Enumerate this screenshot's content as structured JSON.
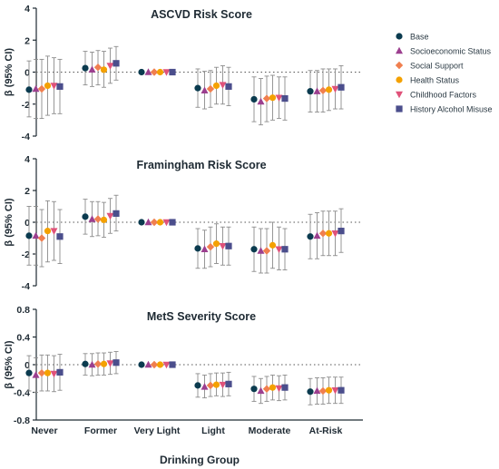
{
  "figure": {
    "xlabel": "Drinking Group",
    "ylabel": "β (95% CI)"
  },
  "legend": {
    "placement": "right",
    "items": [
      {
        "label": "Base",
        "color": "#0b3b4f",
        "marker": "circle"
      },
      {
        "label": "Socioeconomic Status",
        "color": "#9c3f8f",
        "marker": "triangle"
      },
      {
        "label": "Social Support",
        "color": "#f07f4f",
        "marker": "diamond"
      },
      {
        "label": "Health Status",
        "color": "#f4a100",
        "marker": "circle"
      },
      {
        "label": "Childhood Factors",
        "color": "#e0527a",
        "marker": "triangle-down"
      },
      {
        "label": "History Alcohol Misuse",
        "color": "#4b4e8c",
        "marker": "square"
      }
    ]
  },
  "chart_data": [
    {
      "type": "scatter",
      "title": "ASCVD Risk Score",
      "ylabel": "β (95% CI)",
      "ylim": [
        -4,
        4
      ],
      "yticks": [
        "4",
        "2",
        "0",
        "-2",
        "-4"
      ],
      "ytick_values": [
        4,
        2,
        0,
        -2,
        -4
      ],
      "reference_line": 0,
      "categories": [
        "Never",
        "Former",
        "Very Light",
        "Light",
        "Moderate",
        "At-Risk"
      ],
      "series": [
        {
          "name": "Base",
          "values": [
            -1.1,
            0.25,
            0,
            -1.0,
            -1.7,
            -1.2
          ],
          "ci_low": [
            -2.8,
            -0.8,
            0,
            -2.2,
            -3.1,
            -2.5
          ],
          "ci_high": [
            0.7,
            1.3,
            0,
            0.2,
            -0.3,
            0.1
          ]
        },
        {
          "name": "Socioeconomic Status",
          "values": [
            -1.05,
            0.15,
            0,
            -1.15,
            -1.85,
            -1.2
          ],
          "ci_low": [
            -2.9,
            -0.9,
            0,
            -2.3,
            -3.3,
            -2.5
          ],
          "ci_high": [
            0.8,
            1.25,
            0,
            0.05,
            -0.4,
            0.1
          ]
        },
        {
          "name": "Social Support",
          "values": [
            -1.05,
            0.3,
            0,
            -1.05,
            -1.65,
            -1.15
          ],
          "ci_low": [
            -2.9,
            -0.8,
            0,
            -2.2,
            -3.1,
            -2.5
          ],
          "ci_high": [
            0.8,
            1.35,
            0,
            0.1,
            -0.25,
            0.2
          ]
        },
        {
          "name": "Health Status",
          "values": [
            -0.85,
            0.15,
            0,
            -0.85,
            -1.6,
            -1.1
          ],
          "ci_low": [
            -2.7,
            -0.95,
            0,
            -2.0,
            -3.0,
            -2.4
          ],
          "ci_high": [
            1.0,
            1.3,
            0,
            0.3,
            -0.2,
            0.2
          ]
        },
        {
          "name": "Childhood Factors",
          "values": [
            -0.85,
            0.4,
            0,
            -0.8,
            -1.6,
            -1.05
          ],
          "ci_low": [
            -2.6,
            -0.7,
            0,
            -2.0,
            -2.9,
            -2.3
          ],
          "ci_high": [
            0.9,
            1.5,
            0,
            0.4,
            -0.3,
            0.2
          ]
        },
        {
          "name": "History Alcohol Misuse",
          "values": [
            -0.9,
            0.55,
            0,
            -0.9,
            -1.65,
            -0.95
          ],
          "ci_low": [
            -2.6,
            -0.5,
            0,
            -2.1,
            -3.0,
            -2.3
          ],
          "ci_high": [
            0.8,
            1.6,
            0,
            0.3,
            -0.3,
            0.4
          ]
        }
      ]
    },
    {
      "type": "scatter",
      "title": "Framingham Risk Score",
      "ylabel": "β (95% CI)",
      "ylim": [
        -4,
        4
      ],
      "yticks": [
        "4",
        "2",
        "0",
        "-2",
        "-4"
      ],
      "ytick_values": [
        4,
        2,
        0,
        -2,
        -4
      ],
      "reference_line": 0,
      "categories": [
        "Never",
        "Former",
        "Very Light",
        "Light",
        "Moderate",
        "At-Risk"
      ],
      "series": [
        {
          "name": "Base",
          "values": [
            -0.85,
            0.35,
            0,
            -1.65,
            -1.7,
            -0.9
          ],
          "ci_low": [
            -2.7,
            -0.75,
            0,
            -2.9,
            -3.1,
            -2.3
          ],
          "ci_high": [
            1.0,
            1.45,
            0,
            -0.4,
            -0.3,
            0.5
          ]
        },
        {
          "name": "Socioeconomic Status",
          "values": [
            -0.85,
            0.2,
            0,
            -1.7,
            -1.8,
            -0.85
          ],
          "ci_low": [
            -2.7,
            -0.9,
            0,
            -2.9,
            -3.2,
            -2.3
          ],
          "ci_high": [
            1.0,
            1.3,
            0,
            -0.5,
            -0.4,
            0.6
          ]
        },
        {
          "name": "Social Support",
          "values": [
            -1.0,
            0.2,
            0,
            -1.55,
            -1.8,
            -0.7
          ],
          "ci_low": [
            -2.8,
            -0.85,
            0,
            -2.8,
            -3.2,
            -2.1
          ],
          "ci_high": [
            0.8,
            1.3,
            0,
            -0.3,
            -0.4,
            0.7
          ]
        },
        {
          "name": "Health Status",
          "values": [
            -0.55,
            0.15,
            0,
            -1.35,
            -1.45,
            -0.7
          ],
          "ci_low": [
            -2.5,
            -0.95,
            0,
            -2.6,
            -2.9,
            -2.1
          ],
          "ci_high": [
            1.35,
            1.25,
            0,
            -0.1,
            0.0,
            0.7
          ]
        },
        {
          "name": "Childhood Factors",
          "values": [
            -0.55,
            0.4,
            0,
            -1.5,
            -1.7,
            -0.7
          ],
          "ci_low": [
            -2.4,
            -0.7,
            0,
            -2.7,
            -3.0,
            -2.1
          ],
          "ci_high": [
            1.3,
            1.5,
            0,
            -0.3,
            -0.3,
            0.7
          ]
        },
        {
          "name": "History Alcohol Misuse",
          "values": [
            -0.9,
            0.55,
            0,
            -1.5,
            -1.7,
            -0.55
          ],
          "ci_low": [
            -2.6,
            -0.55,
            0,
            -2.7,
            -3.0,
            -1.9
          ],
          "ci_high": [
            0.8,
            1.7,
            0,
            -0.3,
            -0.4,
            0.85
          ]
        }
      ]
    },
    {
      "type": "scatter",
      "title": "MetS Severity Score",
      "ylabel": "β (95% CI)",
      "ylim": [
        -0.8,
        0.8
      ],
      "yticks": [
        "0.8",
        "0.4",
        "0",
        "-0.4",
        "-0.8"
      ],
      "ytick_values": [
        0.8,
        0.4,
        0,
        -0.4,
        -0.8
      ],
      "reference_line": 0,
      "categories": [
        "Never",
        "Former",
        "Very Light",
        "Light",
        "Moderate",
        "At-Risk"
      ],
      "series": [
        {
          "name": "Base",
          "values": [
            -0.12,
            0.01,
            0,
            -0.3,
            -0.35,
            -0.39
          ],
          "ci_low": [
            -0.38,
            -0.15,
            0,
            -0.47,
            -0.53,
            -0.58
          ],
          "ci_high": [
            0.13,
            0.16,
            0,
            -0.13,
            -0.17,
            -0.2
          ]
        },
        {
          "name": "Socioeconomic Status",
          "values": [
            -0.15,
            0.0,
            0,
            -0.32,
            -0.38,
            -0.38
          ],
          "ci_low": [
            -0.4,
            -0.16,
            0,
            -0.48,
            -0.56,
            -0.57
          ],
          "ci_high": [
            0.1,
            0.16,
            0,
            -0.15,
            -0.2,
            -0.19
          ]
        },
        {
          "name": "Social Support",
          "values": [
            -0.12,
            0.01,
            0,
            -0.3,
            -0.35,
            -0.38
          ],
          "ci_low": [
            -0.38,
            -0.15,
            0,
            -0.46,
            -0.53,
            -0.57
          ],
          "ci_high": [
            0.14,
            0.17,
            0,
            -0.13,
            -0.17,
            -0.19
          ]
        },
        {
          "name": "Health Status",
          "values": [
            -0.12,
            0.01,
            0,
            -0.29,
            -0.33,
            -0.37
          ],
          "ci_low": [
            -0.38,
            -0.15,
            0,
            -0.45,
            -0.51,
            -0.56
          ],
          "ci_high": [
            0.14,
            0.17,
            0,
            -0.12,
            -0.15,
            -0.18
          ]
        },
        {
          "name": "Childhood Factors",
          "values": [
            -0.13,
            0.02,
            0,
            -0.29,
            -0.34,
            -0.37
          ],
          "ci_low": [
            -0.39,
            -0.14,
            0,
            -0.46,
            -0.52,
            -0.56
          ],
          "ci_high": [
            0.13,
            0.18,
            0,
            -0.12,
            -0.16,
            -0.18
          ]
        },
        {
          "name": "History Alcohol Misuse",
          "values": [
            -0.11,
            0.03,
            0,
            -0.28,
            -0.33,
            -0.37
          ],
          "ci_low": [
            -0.37,
            -0.13,
            0,
            -0.45,
            -0.51,
            -0.56
          ],
          "ci_high": [
            0.15,
            0.19,
            0,
            -0.11,
            -0.15,
            -0.18
          ]
        }
      ]
    }
  ]
}
